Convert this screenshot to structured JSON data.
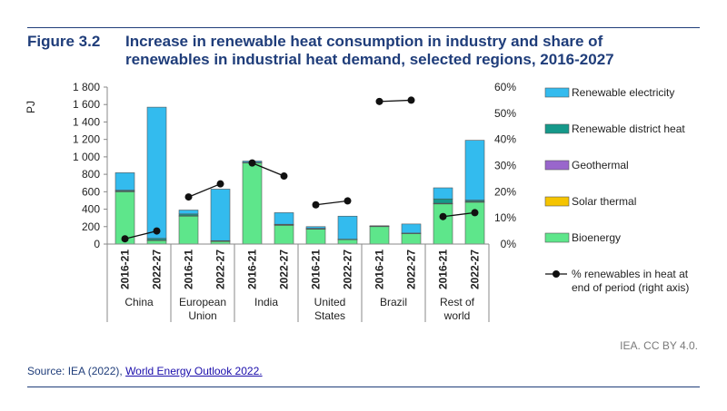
{
  "figure": {
    "number": "Figure 3.2",
    "title": "Increase in renewable heat consumption in industry and share of renewables in industrial heat demand, selected regions, 2016-2027"
  },
  "credit": "IEA. CC BY 4.0.",
  "source": {
    "prefix": "Source: IEA (2022), ",
    "link_text": "World Energy Outlook 2022."
  },
  "colors": {
    "title": "#1f3d7a",
    "Renewable electricity": "#33bbee",
    "Renewable district heat": "#15998a",
    "Geothermal": "#9966cc",
    "Solar thermal": "#f5c400",
    "Bioenergy": "#5ee68b",
    "line": "#111111"
  },
  "chart_data": {
    "type": "bar",
    "stacked": true,
    "left_axis": {
      "label": "PJ",
      "range": [
        0,
        1800
      ],
      "ticks": [
        "0",
        "200",
        "400",
        "600",
        "800",
        "1 000",
        "1 200",
        "1 400",
        "1 600",
        "1 800"
      ]
    },
    "right_axis": {
      "range": [
        0,
        60
      ],
      "ticks": [
        "0%",
        "10%",
        "20%",
        "30%",
        "40%",
        "50%",
        "60%"
      ]
    },
    "grid": false,
    "legend_position": "right",
    "groups": [
      {
        "region": [
          "China"
        ],
        "periods": [
          "2016-21",
          "2022-27"
        ]
      },
      {
        "region": [
          "European",
          "Union"
        ],
        "periods": [
          "2016-21",
          "2022-27"
        ]
      },
      {
        "region": [
          "India"
        ],
        "periods": [
          "2016-21",
          "2022-27"
        ]
      },
      {
        "region": [
          "United",
          "States"
        ],
        "periods": [
          "2016-21",
          "2022-27"
        ]
      },
      {
        "region": [
          "Brazil"
        ],
        "periods": [
          "2016-21",
          "2022-27"
        ]
      },
      {
        "region": [
          "Rest of",
          "world"
        ],
        "periods": [
          "2016-21",
          "2022-27"
        ]
      }
    ],
    "series": [
      {
        "name": "Bioenergy",
        "values": [
          600,
          40,
          320,
          30,
          930,
          215,
          170,
          50,
          200,
          120,
          460,
          480
        ]
      },
      {
        "name": "Solar thermal",
        "values": [
          5,
          3,
          3,
          2,
          3,
          5,
          2,
          2,
          2,
          2,
          5,
          5
        ]
      },
      {
        "name": "Geothermal",
        "values": [
          3,
          2,
          2,
          2,
          2,
          2,
          3,
          2,
          2,
          2,
          3,
          4
        ]
      },
      {
        "name": "Renewable district heat",
        "values": [
          10,
          20,
          20,
          5,
          2,
          5,
          5,
          2,
          2,
          2,
          50,
          15
        ]
      },
      {
        "name": "Renewable electricity",
        "values": [
          200,
          1505,
          45,
          591,
          15,
          133,
          20,
          264,
          4,
          104,
          127,
          686
        ]
      }
    ],
    "line_series": {
      "name": "% renewables in heat at end of period (right axis)",
      "legend_lines": [
        "% renewables in heat at",
        "end of period (right axis)"
      ],
      "values": [
        2,
        5,
        18,
        23,
        31,
        26,
        15,
        16.5,
        54.5,
        55,
        10.5,
        12
      ]
    }
  }
}
